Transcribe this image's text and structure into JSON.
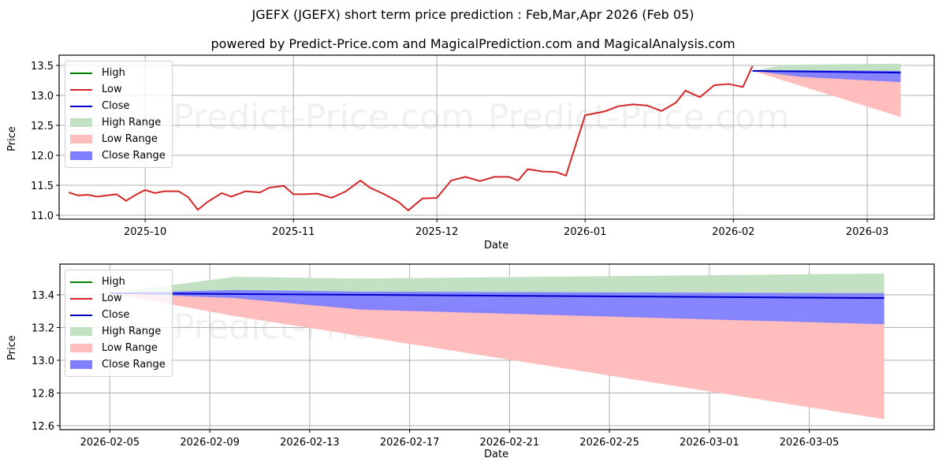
{
  "title": "JGEFX (JGEFX) short term price prediction : Feb,Mar,Apr 2026 (Feb 05)",
  "subtitle": "powered by Predict-Price.com and MagicalPrediction.com and MagicalAnalysis.com",
  "watermark": "Predict-Price.com",
  "colors": {
    "high": "#008000",
    "low": "#d62728",
    "close": "#0000cc",
    "high_range": "#c2e0c2",
    "low_range": "#ffbdbd",
    "close_range": "#7f7fff",
    "grid": "#b0b0b0"
  },
  "legend": {
    "items": [
      {
        "label": "High",
        "kind": "line",
        "color": "#008000"
      },
      {
        "label": "Low",
        "kind": "line",
        "color": "#d62728"
      },
      {
        "label": "Close",
        "kind": "line",
        "color": "#0000cc"
      },
      {
        "label": "High Range",
        "kind": "patch",
        "color": "#c2e0c2"
      },
      {
        "label": "Low Range",
        "kind": "patch",
        "color": "#ffbdbd"
      },
      {
        "label": "Close Range",
        "kind": "patch",
        "color": "#7f7fff"
      }
    ]
  },
  "chart_data": [
    {
      "type": "line",
      "title": "JGEFX (JGEFX) short term price prediction : Feb,Mar,Apr 2026 (Feb 05)",
      "xlabel": "Date",
      "ylabel": "Price",
      "ylim": [
        10.95,
        13.65
      ],
      "yticks": [
        "11.0",
        "11.5",
        "12.0",
        "12.5",
        "13.0",
        "13.5"
      ],
      "xticks": [
        "2025-10",
        "2025-11",
        "2025-12",
        "2026-01",
        "2026-02",
        "2026-03"
      ],
      "grid": true,
      "legend_position": "upper left",
      "series": [
        {
          "name": "Low (historical)",
          "x": [
            "2025-09-15",
            "2025-09-17",
            "2025-09-19",
            "2025-09-21",
            "2025-09-23",
            "2025-09-25",
            "2025-09-27",
            "2025-09-29",
            "2025-10-01",
            "2025-10-03",
            "2025-10-05",
            "2025-10-08",
            "2025-10-10",
            "2025-10-12",
            "2025-10-14",
            "2025-10-17",
            "2025-10-19",
            "2025-10-22",
            "2025-10-25",
            "2025-10-27",
            "2025-10-30",
            "2025-11-01",
            "2025-11-03",
            "2025-11-06",
            "2025-11-09",
            "2025-11-12",
            "2025-11-15",
            "2025-11-17",
            "2025-11-20",
            "2025-11-23",
            "2025-11-25",
            "2025-11-28",
            "2025-12-01",
            "2025-12-04",
            "2025-12-07",
            "2025-12-10",
            "2025-12-13",
            "2025-12-16",
            "2025-12-18",
            "2025-12-20",
            "2025-12-23",
            "2025-12-26",
            "2025-12-28",
            "2026-01-01",
            "2026-01-05",
            "2026-01-08",
            "2026-01-11",
            "2026-01-14",
            "2026-01-17",
            "2026-01-20",
            "2026-01-22",
            "2026-01-25",
            "2026-01-28",
            "2026-01-31",
            "2026-02-03",
            "2026-02-05"
          ],
          "values": [
            11.38,
            11.33,
            11.34,
            11.31,
            11.33,
            11.35,
            11.24,
            11.34,
            11.42,
            11.37,
            11.4,
            11.4,
            11.3,
            11.09,
            11.22,
            11.37,
            11.31,
            11.4,
            11.38,
            11.46,
            11.49,
            11.35,
            11.35,
            11.36,
            11.29,
            11.4,
            11.58,
            11.46,
            11.35,
            11.22,
            11.08,
            11.28,
            11.29,
            11.58,
            11.64,
            11.57,
            11.64,
            11.64,
            11.58,
            11.77,
            11.73,
            11.72,
            11.66,
            12.67,
            12.73,
            12.82,
            12.85,
            12.83,
            12.74,
            12.88,
            13.08,
            12.97,
            13.17,
            13.19,
            13.14,
            13.49
          ]
        },
        {
          "name": "High Range",
          "x": [
            "2026-02-05",
            "2026-02-12",
            "2026-03-08"
          ],
          "upper": [
            13.41,
            13.51,
            13.53
          ],
          "lower": [
            13.41,
            13.4,
            13.4
          ]
        },
        {
          "name": "Close Range",
          "x": [
            "2026-02-05",
            "2026-02-15",
            "2026-03-08"
          ],
          "upper": [
            13.41,
            13.42,
            13.41
          ],
          "lower": [
            13.41,
            13.31,
            13.22
          ]
        },
        {
          "name": "Low Range",
          "x": [
            "2026-02-05",
            "2026-03-08"
          ],
          "upper": [
            13.41,
            13.4
          ],
          "lower": [
            13.41,
            12.64
          ]
        },
        {
          "name": "Close",
          "x": [
            "2026-02-05",
            "2026-03-08"
          ],
          "values": [
            13.41,
            13.38
          ]
        }
      ]
    },
    {
      "type": "line",
      "xlabel": "Date",
      "ylabel": "Price",
      "ylim": [
        12.6,
        13.55
      ],
      "yticks": [
        "12.6",
        "12.8",
        "13.0",
        "13.2",
        "13.4"
      ],
      "xticks": [
        "2026-02-05",
        "2026-02-09",
        "2026-02-13",
        "2026-02-17",
        "2026-02-21",
        "2026-02-25",
        "2026-03-01",
        "2026-03-05"
      ],
      "grid": true,
      "legend_position": "upper left",
      "series": [
        {
          "name": "High Range",
          "x": [
            "2026-02-05",
            "2026-02-10",
            "2026-02-15",
            "2026-03-08"
          ],
          "upper": [
            13.41,
            13.51,
            13.5,
            13.53
          ],
          "lower": [
            13.41,
            13.43,
            13.42,
            13.41
          ]
        },
        {
          "name": "Close Range",
          "x": [
            "2026-02-05",
            "2026-02-10",
            "2026-02-15",
            "2026-03-08"
          ],
          "upper": [
            13.41,
            13.43,
            13.42,
            13.41
          ],
          "lower": [
            13.41,
            13.38,
            13.31,
            13.22
          ]
        },
        {
          "name": "Low Range",
          "x": [
            "2026-02-05",
            "2026-02-10",
            "2026-03-08"
          ],
          "upper": [
            13.41,
            13.38,
            13.22
          ],
          "lower": [
            13.41,
            13.27,
            12.64
          ]
        },
        {
          "name": "Close",
          "x": [
            "2026-02-05",
            "2026-03-08"
          ],
          "values": [
            13.41,
            13.38
          ]
        }
      ]
    }
  ]
}
